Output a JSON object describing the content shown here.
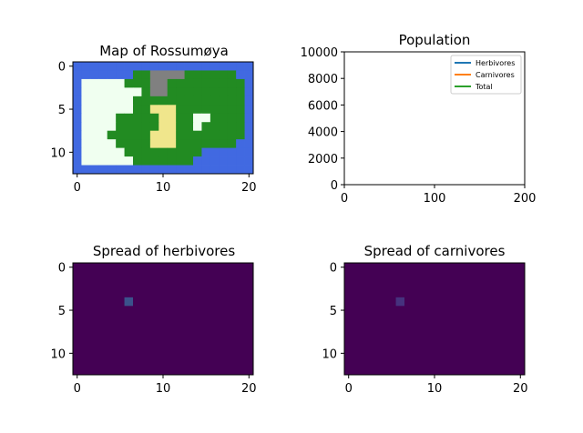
{
  "colors": {
    "ocean": "#4169e1",
    "lowland": "#228b22",
    "highland": "#f0e68c",
    "desert": "#f0fff0",
    "mountain": "#808080",
    "density_bg": "#440154",
    "density_hot": "#3b528b",
    "density_hot2": "#46327e",
    "herbivores": "#1f77b4",
    "carnivores": "#ff7f0e",
    "total": "#2ca02c"
  },
  "chart_data": [
    {
      "type": "heatmap",
      "title": "Map of Rossumøya",
      "xlim": [
        -0.5,
        20.5
      ],
      "ylim": [
        12.5,
        -0.5
      ],
      "xticks": [
        0,
        10,
        20
      ],
      "yticks": [
        0,
        5,
        10
      ],
      "legend": {
        "O": "ocean",
        "L": "lowland",
        "H": "highland",
        "D": "desert",
        "M": "mountain"
      },
      "grid": [
        "OOOOOOOOOOOOOOOOOOOOO",
        "OOOOOOOLLMMMMLLLLLLOO",
        "ODDDDDLLLMMLLLLLLLLLO",
        "ODDDDDDDLMMLLLLLLLLLO",
        "ODDDDDDLLLLLLLLLLLLLO",
        "ODDDDDDLLHHHLLLLLLLLO",
        "ODDDDLLLLLHHLLDDLLLLO",
        "ODDDDLLLLLHHLLDLLLLLO",
        "ODDDLLLLLHHHLLLLLLLLO",
        "ODDDDLLLLHHHLLLLLLLOO",
        "ODDDDDLLLLLLLLLOOOOOO",
        "ODDDDDDLLLLLLLOOOOOOO",
        "OOOOOOOOOOOOOOOOOOOOO"
      ]
    },
    {
      "type": "line",
      "title": "Population",
      "xlim": [
        0,
        200
      ],
      "ylim": [
        0,
        10000
      ],
      "xticks": [
        0,
        100,
        200
      ],
      "yticks": [
        0,
        2000,
        4000,
        6000,
        8000,
        10000
      ],
      "legend_position": "top-right",
      "series": [
        {
          "name": "Herbivores",
          "x": [],
          "values": []
        },
        {
          "name": "Carnivores",
          "x": [],
          "values": []
        },
        {
          "name": "Total",
          "x": [],
          "values": []
        }
      ]
    },
    {
      "type": "heatmap",
      "title": "Spread of herbivores",
      "xlim": [
        -0.5,
        20.5
      ],
      "ylim": [
        12.5,
        -0.5
      ],
      "xticks": [
        0,
        10,
        20
      ],
      "yticks": [
        0,
        5,
        10
      ],
      "hot_cells": [
        {
          "row": 4,
          "col": 6,
          "level": 1
        }
      ]
    },
    {
      "type": "heatmap",
      "title": "Spread of carnivores",
      "xlim": [
        -0.5,
        20.5
      ],
      "ylim": [
        12.5,
        -0.5
      ],
      "xticks": [
        0,
        10,
        20
      ],
      "yticks": [
        0,
        5,
        10
      ],
      "hot_cells": [
        {
          "row": 4,
          "col": 6,
          "level": 0.5
        }
      ]
    }
  ]
}
